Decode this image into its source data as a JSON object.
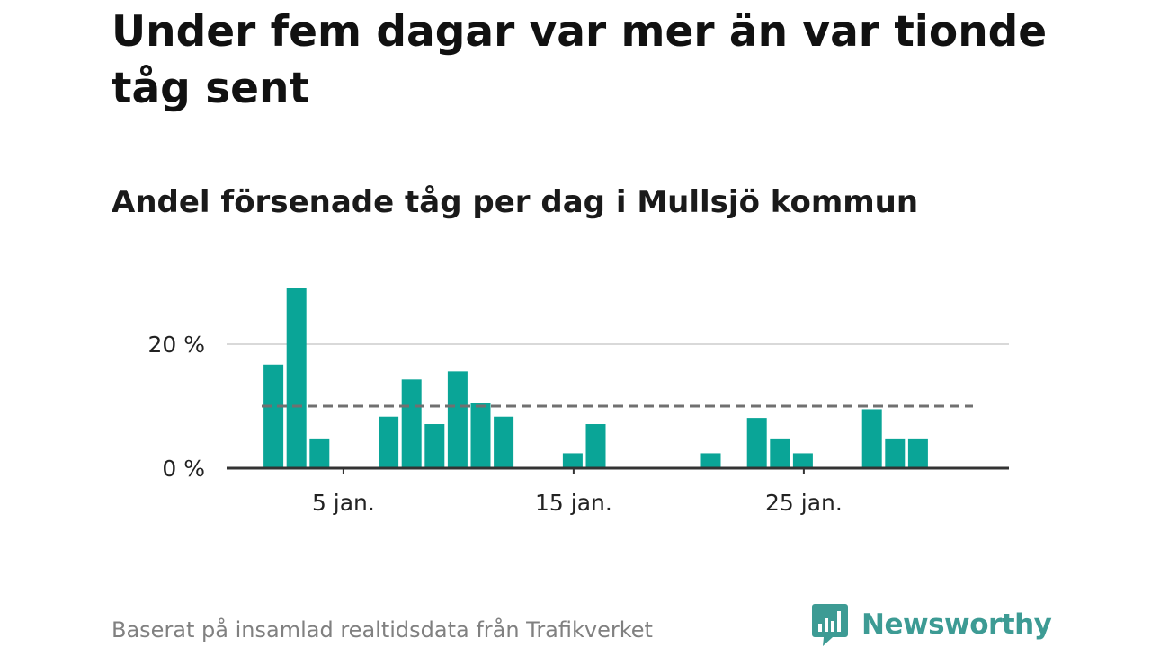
{
  "title": "Under fem dagar var mer än var tionde tåg sent",
  "subtitle": "Andel försenade tåg per dag i Mullsjö kommun",
  "source": "Baserat på insamlad realtidsdata från Trafikverket",
  "brand": {
    "name": "Newsworthy",
    "icon": "newsworthy-logo-icon",
    "color": "#3d9b94"
  },
  "chart_data": {
    "type": "bar",
    "x": [
      1,
      2,
      3,
      4,
      5,
      6,
      7,
      8,
      9,
      10,
      11,
      12,
      13,
      14,
      15,
      16,
      17,
      18,
      19,
      20,
      21,
      22,
      23,
      24,
      25,
      26,
      27,
      28,
      29,
      30,
      31
    ],
    "values": [
      0,
      16.7,
      29,
      4.8,
      0,
      0,
      8.3,
      14.3,
      7.1,
      15.6,
      10.5,
      8.3,
      0,
      0,
      2.4,
      7.1,
      0,
      0,
      0,
      0,
      2.4,
      0,
      8.1,
      4.8,
      2.4,
      0,
      0,
      9.5,
      4.8,
      4.8,
      0
    ],
    "x_ticks": [
      {
        "day": 5,
        "label": "5 jan."
      },
      {
        "day": 15,
        "label": "15 jan."
      },
      {
        "day": 25,
        "label": "25 jan."
      }
    ],
    "y_ticks": [
      {
        "value": 0,
        "label": "0 %"
      },
      {
        "value": 20,
        "label": "20 %"
      }
    ],
    "reference_line": {
      "value": 10,
      "style": "dashed"
    },
    "ylim": [
      0,
      30
    ],
    "grid": true,
    "colors": {
      "bar": "#0aa597",
      "reference": "#707070",
      "grid": "#d9d9d9",
      "axis": "#333333"
    }
  }
}
